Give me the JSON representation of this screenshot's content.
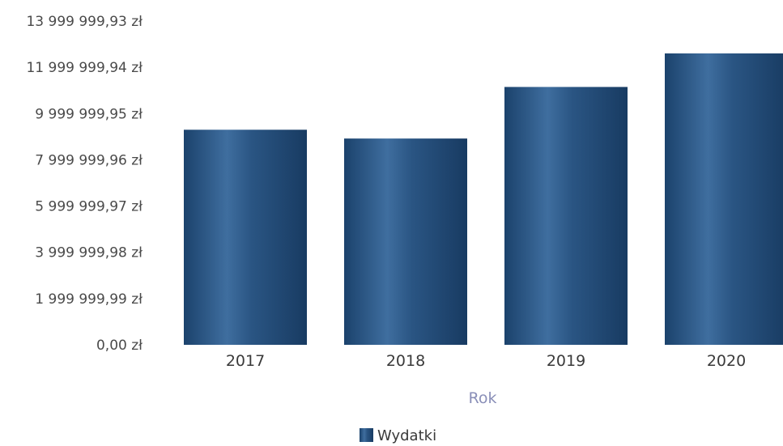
{
  "chart_data": {
    "type": "bar",
    "categories": [
      "2017",
      "2018",
      "2019",
      "2020"
    ],
    "series": [
      {
        "name": "Wydatki",
        "values": [
          9300000,
          8920000,
          11150000,
          12600000
        ],
        "color": "#1f4e7f"
      }
    ],
    "xlabel": "Rok",
    "ylabel": "",
    "ylim": [
      0,
      13999999.93
    ],
    "yticks": [
      {
        "value": 0,
        "label": "0,00 zł"
      },
      {
        "value": 1999999.99,
        "label": "1 999 999,99 zł"
      },
      {
        "value": 3999999.98,
        "label": "3 999 999,98 zł"
      },
      {
        "value": 5999999.97,
        "label": "5 999 999,97 zł"
      },
      {
        "value": 7999999.96,
        "label": "7 999 999,96 zł"
      },
      {
        "value": 9999999.95,
        "label": "9 999 999,95 zł"
      },
      {
        "value": 11999999.94,
        "label": "11 999 999,94 zł"
      },
      {
        "value": 13999999.93,
        "label": "13 999 999,93 zł"
      }
    ],
    "grid": false,
    "legend": {
      "position": "bottom-center",
      "entries": [
        "Wydatki"
      ]
    }
  }
}
